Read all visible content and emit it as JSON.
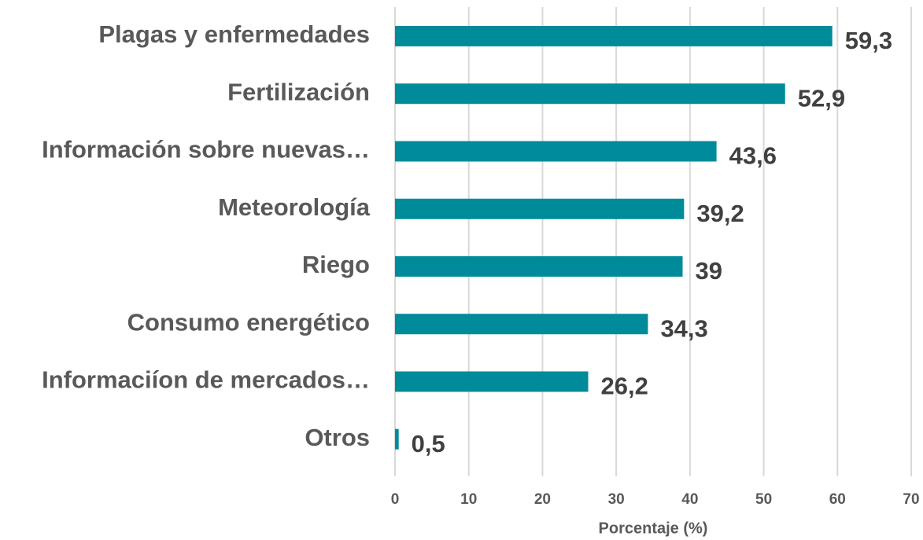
{
  "chart_data": {
    "type": "bar",
    "orientation": "horizontal",
    "categories": [
      "Plagas y enfermedades",
      "Fertilización",
      "Información sobre nuevas…",
      "Meteorología",
      "Riego",
      "Consumo energético",
      "Informaciíon de mercados…",
      "Otros"
    ],
    "values": [
      59.3,
      52.9,
      43.6,
      39.2,
      39,
      34.3,
      26.2,
      0.5
    ],
    "value_labels": [
      "59,3",
      "52,9",
      "43,6",
      "39,2",
      "39",
      "34,3",
      "26,2",
      "0,5"
    ],
    "color": "#008b9a",
    "xlabel": "Porcentaje (%)",
    "xlim": [
      0,
      70
    ],
    "xticks": [
      0,
      10,
      20,
      30,
      40,
      50,
      60,
      70
    ],
    "grid": true
  }
}
